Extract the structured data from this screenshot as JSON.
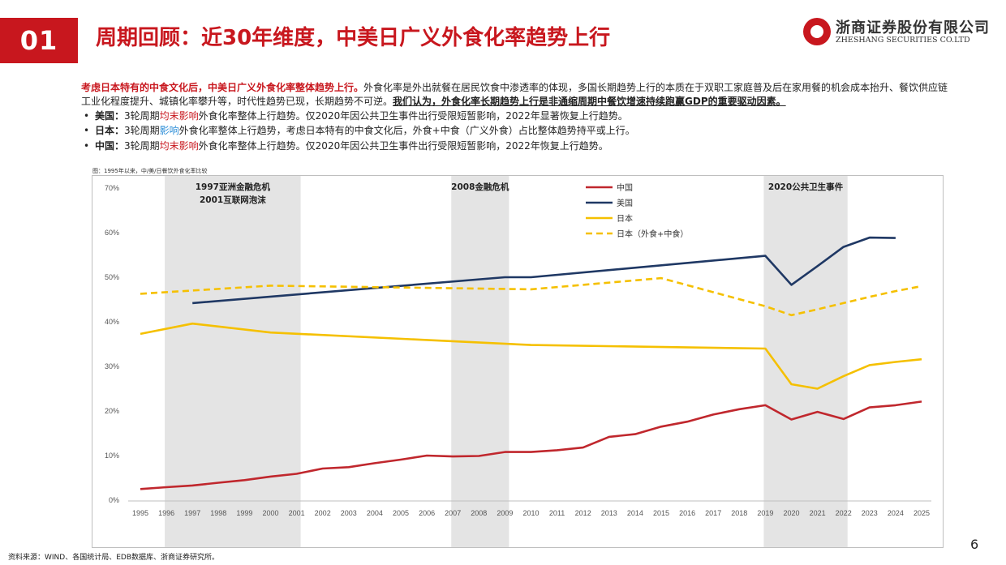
{
  "header": {
    "badge": "01",
    "title": "周期回顾：近30年维度，中美日广义外食化率趋势上行",
    "logo_cn": "浙商证券股份有限公司",
    "logo_en": "ZHESHANG SECURITIES CO.LTD",
    "brand_color": "#c8171e"
  },
  "intro": {
    "lead_red": "考虑日本特有的中食文化后，中美日广义外食化率整体趋势上行。",
    "body": "外食化率是外出就餐在居民饮食中渗透率的体现，多国长期趋势上行的本质在于双职工家庭普及后在家用餐的机会成本抬升、餐饮供应链工业化程度提升、城镇化率攀升等，时代性趋势已现，长期趋势不可逆。",
    "conclusion": "我们认为，外食化率长期趋势上行是非通缩周期中餐饮增速持续跑赢GDP的重要驱动因素。"
  },
  "bullets": [
    {
      "dot": "•",
      "label": "美国：",
      "pre": "3轮周期",
      "hl": "均末影响",
      "hl_color": "red",
      "post": "外食化率整体上行趋势。仅2020年因公共卫生事件出行受限短暂影响，2022年显著恢复上行趋势。"
    },
    {
      "dot": "•",
      "label": "日本：",
      "pre": "3轮周期",
      "hl": "影响",
      "hl_color": "blue",
      "post": "外食化率整体上行趋势，考虑日本特有的中食文化后，外食+中食（广义外食）占比整体趋势持平或上行。"
    },
    {
      "dot": "•",
      "label": "中国：",
      "pre": "3轮周期",
      "hl": "均末影响",
      "hl_color": "red",
      "post": "外食化率整体上行趋势。仅2020年因公共卫生事件出行受限短暂影响，2022年恢复上行趋势。"
    }
  ],
  "chart_caption": "图：1995年以来，中/美/日餐饮外食化率比较",
  "source": "资料来源：WIND、各国统计局、EDB数据库、浙商证券研究所。",
  "page_number": "6",
  "chart_data": {
    "type": "line",
    "x": [
      "1995",
      "1996",
      "1997",
      "1998",
      "1999",
      "2000",
      "2001",
      "2002",
      "2003",
      "2004",
      "2005",
      "2006",
      "2007",
      "2008",
      "2009",
      "2010",
      "2011",
      "2012",
      "2013",
      "2014",
      "2015",
      "2016",
      "2017",
      "2018",
      "2019",
      "2020",
      "2021",
      "2022",
      "2023",
      "2024",
      "2025"
    ],
    "ylim": [
      0,
      70
    ],
    "yticks": [
      0,
      10,
      20,
      30,
      40,
      50,
      60,
      70
    ],
    "ytick_labels": [
      "0%",
      "10%",
      "20%",
      "30%",
      "40%",
      "50%",
      "60%",
      "70%"
    ],
    "grid": false,
    "legend_position": "top-center",
    "shaded_periods": [
      {
        "start": "1996",
        "end": "2001",
        "labels": [
          "1997亚洲金融危机",
          "2001互联网泡沫"
        ]
      },
      {
        "start": "2007",
        "end": "2009",
        "labels": [
          "2008金融危机"
        ]
      },
      {
        "start": "2019",
        "end": "2022",
        "labels": [
          "2020公共卫生事件"
        ]
      }
    ],
    "series": [
      {
        "name": "中国",
        "color": "#c0272d",
        "dash": "solid",
        "values": [
          2.5,
          2.9,
          3.3,
          3.9,
          4.5,
          5.3,
          5.9,
          7.1,
          7.4,
          8.3,
          9.1,
          10.0,
          9.8,
          9.9,
          10.8,
          10.8,
          11.2,
          11.8,
          14.2,
          14.8,
          16.5,
          17.6,
          19.2,
          20.4,
          21.3,
          18.1,
          19.8,
          18.2,
          20.8,
          21.3,
          22.1
        ]
      },
      {
        "name": "美国",
        "color": "#1f3864",
        "dash": "solid",
        "values": [
          null,
          null,
          44.2,
          null,
          null,
          null,
          null,
          null,
          null,
          null,
          null,
          null,
          null,
          null,
          50.0,
          50.0,
          null,
          null,
          null,
          null,
          null,
          null,
          null,
          null,
          54.8,
          48.3,
          52.5,
          56.8,
          58.9,
          58.8,
          null
        ]
      },
      {
        "name": "日本",
        "color": "#f5c000",
        "dash": "solid",
        "values": [
          37.3,
          null,
          39.6,
          null,
          null,
          37.6,
          null,
          null,
          null,
          null,
          null,
          null,
          null,
          null,
          null,
          34.8,
          null,
          null,
          null,
          null,
          null,
          null,
          null,
          null,
          34.0,
          26.0,
          25.0,
          27.8,
          30.3,
          31.0,
          31.6
        ]
      },
      {
        "name": "日本（外食+中食）",
        "color": "#f5c000",
        "dash": "dashed",
        "values": [
          46.3,
          null,
          null,
          null,
          null,
          48.1,
          null,
          null,
          null,
          null,
          null,
          null,
          null,
          null,
          null,
          47.3,
          null,
          null,
          null,
          null,
          49.8,
          null,
          null,
          null,
          43.5,
          41.5,
          42.8,
          44.2,
          45.6,
          46.9,
          48.0
        ]
      }
    ]
  }
}
